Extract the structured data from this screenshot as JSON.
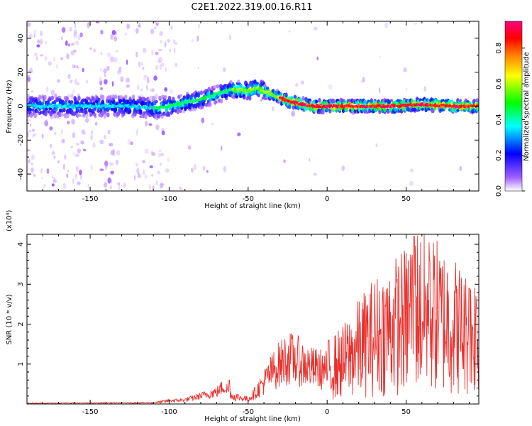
{
  "title": "C2E1.2022.319.00.16.R11",
  "chart_data": [
    {
      "type": "heatmap",
      "name": "spectrogram",
      "xlabel": "Height of straight line (km)",
      "ylabel": "Frequency (Hz)",
      "xlim": [
        -190,
        96
      ],
      "ylim": [
        -50,
        50
      ],
      "xticks": [
        -150,
        -100,
        -50,
        0,
        50
      ],
      "xtick_labels": [
        "-150",
        "-100",
        "-50",
        "0",
        "50"
      ],
      "yticks": [
        -40,
        -20,
        0,
        20,
        40
      ],
      "ytick_labels": [
        "-40",
        "-20",
        "0",
        "20",
        "40"
      ],
      "ridge": {
        "x": [
          -190,
          -150,
          -125,
          -110,
          -100,
          -90,
          -80,
          -70,
          -60,
          -50,
          -45,
          -38,
          -30,
          -25,
          -20,
          -10,
          0,
          20,
          40,
          60,
          80,
          96
        ],
        "y": [
          0,
          0,
          0,
          -1,
          0,
          2,
          4,
          7,
          10,
          9,
          11,
          8,
          5,
          3,
          2,
          0,
          0,
          0,
          0,
          1,
          0,
          0
        ]
      },
      "colorbar": {
        "label": "Normalized spectral amplitude",
        "ticks": [
          0.0,
          0.2,
          0.4,
          0.6,
          0.8
        ],
        "tick_labels": [
          "0.0",
          "0.2",
          "0.4",
          "0.6",
          "0.8"
        ],
        "colors": [
          "#ffffff",
          "#8a2be2",
          "#0000ff",
          "#00ffff",
          "#00ff00",
          "#ffff00",
          "#ff8000",
          "#ff0000",
          "#ff0080"
        ]
      }
    },
    {
      "type": "line",
      "name": "snr",
      "xlabel": "Height of straight line (km)",
      "ylabel": "SNR (10 * v/v)",
      "yscale_label": "(x10⁴)",
      "xlim": [
        -190,
        96
      ],
      "ylim": [
        0,
        4.25
      ],
      "xticks": [
        -150,
        -100,
        -50,
        0,
        50
      ],
      "xtick_labels": [
        "-150",
        "-100",
        "-50",
        "0",
        "50"
      ],
      "yticks": [
        1,
        2,
        3,
        4
      ],
      "ytick_labels": [
        "1",
        "2",
        "3",
        "4"
      ],
      "color": "#e8312e",
      "envelope": {
        "x": [
          -190,
          -110,
          -100,
          -90,
          -80,
          -70,
          -65,
          -60,
          -50,
          -45,
          -40,
          -35,
          -30,
          -25,
          -20,
          -10,
          0,
          10,
          20,
          30,
          40,
          50,
          55,
          60,
          70,
          80,
          90,
          96
        ],
        "y": [
          0.02,
          0.03,
          0.08,
          0.1,
          0.2,
          0.3,
          0.45,
          0.2,
          0.12,
          0.3,
          0.55,
          0.8,
          1.0,
          1.15,
          1.1,
          0.9,
          0.85,
          1.05,
          1.4,
          1.7,
          1.9,
          2.1,
          2.5,
          2.3,
          2.2,
          2.0,
          1.7,
          1.9
        ]
      },
      "peaks": {
        "x": [
          -62,
          55,
          65,
          72,
          90
        ],
        "y": [
          0.6,
          4.2,
          3.6,
          3.4,
          2.9
        ]
      }
    }
  ]
}
